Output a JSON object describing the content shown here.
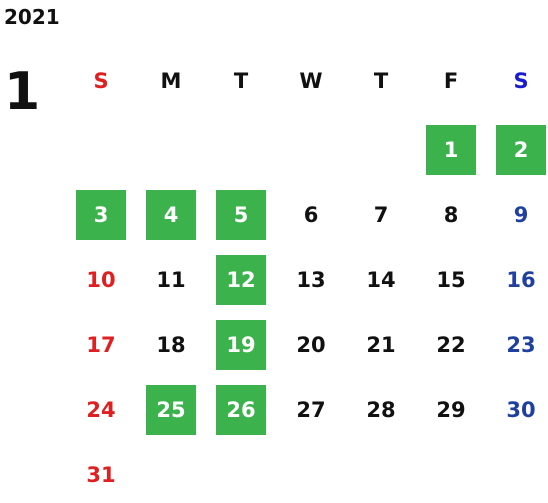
{
  "calendar": {
    "year": "2021",
    "month": "1",
    "colors": {
      "highlight": "#3bb24b",
      "sunday": "#e02020",
      "saturday": "#2040a0",
      "saturday_header": "#1a1ad0",
      "weekday": "#111111"
    },
    "weekdays": [
      "S",
      "M",
      "T",
      "W",
      "T",
      "F",
      "S"
    ],
    "weeks": [
      [
        null,
        null,
        null,
        null,
        null,
        "1",
        "2"
      ],
      [
        "3",
        "4",
        "5",
        "6",
        "7",
        "8",
        "9"
      ],
      [
        "10",
        "11",
        "12",
        "13",
        "14",
        "15",
        "16"
      ],
      [
        "17",
        "18",
        "19",
        "20",
        "21",
        "22",
        "23"
      ],
      [
        "24",
        "25",
        "26",
        "27",
        "28",
        "29",
        "30"
      ],
      [
        "31",
        null,
        null,
        null,
        null,
        null,
        null
      ]
    ],
    "highlighted_days": [
      "1",
      "2",
      "3",
      "4",
      "5",
      "12",
      "19",
      "25",
      "26"
    ]
  }
}
